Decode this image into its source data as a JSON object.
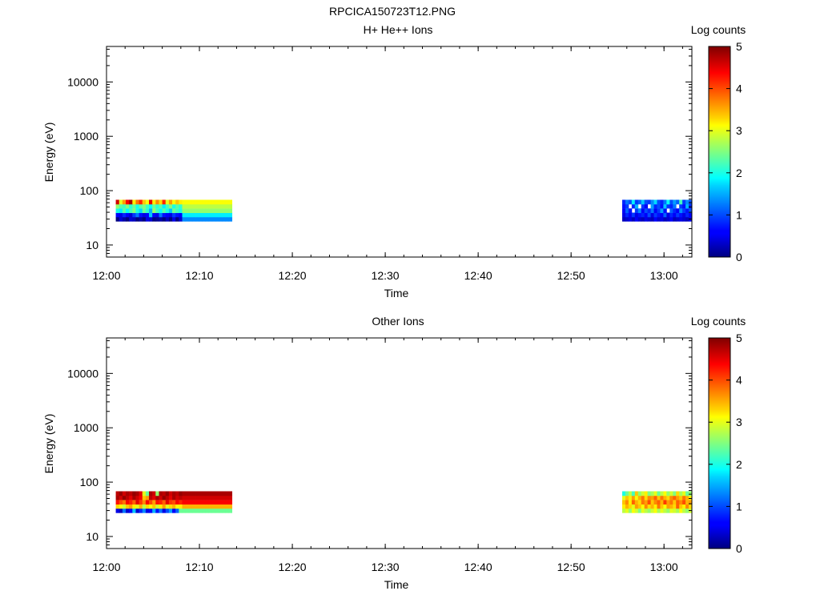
{
  "figure_title": "RPCICA150723T12.PNG",
  "chart_data": [
    {
      "type": "heatmap",
      "title": "H+ He++ Ions",
      "xlabel": "Time",
      "ylabel": "Energy (eV)",
      "y_scale": "log",
      "xlim": [
        "12:00",
        "13:03"
      ],
      "ylim": [
        6,
        45000
      ],
      "x_ticks": [
        "12:00",
        "12:10",
        "12:20",
        "12:30",
        "12:40",
        "12:50",
        "13:00"
      ],
      "y_ticks": [
        "10",
        "100",
        "1000",
        "10000"
      ],
      "colorbar": {
        "label": "Log counts",
        "range": [
          0,
          5
        ],
        "ticks": [
          "0",
          "1",
          "2",
          "3",
          "4",
          "5"
        ],
        "colormap": "jet"
      },
      "energy_bins": [
        30,
        36,
        43,
        52,
        62
      ],
      "segments": [
        {
          "t_start": "12:01",
          "t_end": "12:13.5",
          "rows": [
            [
              0.0,
              0.4,
              0.2,
              0.0,
              0.4,
              0.3,
              0.0,
              0.2,
              0.0,
              0.5,
              0.4,
              0.0,
              0.1,
              0.2,
              0.0,
              0.3,
              0.0,
              0.5,
              0.0,
              0.4,
              1.3,
              1.3,
              1.3,
              1.3,
              1.3,
              1.3,
              1.3,
              1.3,
              1.3,
              1.3,
              1.3,
              1.3,
              1.3,
              1.3,
              1.3
            ],
            [
              0.6,
              0.5,
              0.8,
              0.6,
              0.4,
              0.9,
              1.2,
              0.7,
              0.5,
              0.6,
              1.6,
              0.6,
              0.5,
              1.2,
              0.7,
              0.6,
              0.5,
              0.9,
              0.7,
              0.6,
              1.8,
              1.8,
              1.8,
              1.8,
              1.8,
              1.8,
              1.8,
              1.8,
              1.8,
              1.8,
              1.8,
              1.8,
              1.8,
              1.8,
              1.8
            ],
            [
              2.0,
              1.8,
              2.3,
              1.9,
              2.2,
              2.5,
              2.0,
              1.7,
              2.4,
              2.1,
              1.5,
              2.6,
              2.2,
              1.9,
              2.3,
              2.0,
              1.6,
              2.4,
              2.2,
              2.0,
              2.6,
              2.6,
              2.6,
              2.6,
              2.6,
              2.6,
              2.6,
              2.6,
              2.6,
              2.6,
              2.6,
              2.6,
              2.6,
              2.6,
              2.6
            ],
            [
              2.6,
              2.3,
              2.2,
              2.5,
              2.1,
              2.4,
              2.0,
              2.3,
              2.5,
              2.2,
              1.9,
              2.4,
              2.1,
              2.3,
              1.8,
              2.2,
              2.5,
              2.0,
              2.3,
              2.1,
              2.8,
              2.8,
              2.8,
              2.8,
              2.8,
              2.8,
              2.8,
              2.8,
              2.8,
              2.8,
              2.8,
              2.8,
              2.8,
              2.8,
              2.8
            ],
            [
              4.6,
              3.0,
              3.6,
              4.4,
              4.8,
              3.2,
              3.8,
              4.2,
              3.4,
              3.1,
              4.5,
              3.2,
              3.7,
              3.3,
              4.2,
              3.0,
              3.6,
              3.1,
              3.4,
              3.2,
              3.1,
              3.1,
              3.1,
              3.1,
              3.1,
              3.1,
              3.1,
              3.1,
              3.1,
              3.1,
              3.1,
              3.1,
              3.1,
              3.1,
              3.1
            ]
          ]
        },
        {
          "t_start": "12:55.5",
          "t_end": "13:03",
          "rows": [
            [
              0.3,
              0.4,
              0.5,
              0.3,
              0.6,
              0.4,
              0.3,
              0.5,
              0.4,
              0.3,
              0.6,
              0.4,
              0.5,
              0.3,
              0.4,
              0.6,
              0.3,
              0.4,
              0.5,
              0.4,
              0.3,
              0.5
            ],
            [
              0.5,
              0.8,
              0.6,
              0.9,
              0.5,
              0.7,
              0.8,
              0.6,
              1.0,
              0.5,
              0.9,
              0.7,
              0.6,
              1.1,
              0.5,
              0.8,
              0.6,
              0.9,
              0.7,
              0.5,
              0.8,
              0.6
            ],
            [
              0.6,
              1.1,
              0.7,
              null,
              0.9,
              1.3,
              0.6,
              1.0,
              0.8,
              1.2,
              0.6,
              0.9,
              1.4,
              0.7,
              null,
              1.1,
              0.8,
              0.6,
              1.3,
              0.9,
              0.7,
              1.0
            ],
            [
              0.7,
              0.9,
              null,
              0.8,
              1.5,
              null,
              0.9,
              0.6,
              null,
              1.4,
              0.8,
              1.0,
              0.7,
              1.6,
              0.9,
              0.8,
              1.2,
              null,
              0.9,
              0.7,
              1.5,
              0.8
            ],
            [
              0.8,
              1.2,
              1.0,
              1.8,
              0.9,
              1.1,
              1.6,
              1.0,
              0.9,
              1.3,
              1.7,
              1.0,
              0.8,
              1.2,
              1.9,
              1.0,
              1.4,
              1.1,
              2.2,
              0.9,
              1.3,
              1.0
            ]
          ]
        }
      ]
    },
    {
      "type": "heatmap",
      "title": "Other Ions",
      "xlabel": "Time",
      "ylabel": "Energy (eV)",
      "y_scale": "log",
      "xlim": [
        "12:00",
        "13:03"
      ],
      "ylim": [
        6,
        45000
      ],
      "x_ticks": [
        "12:00",
        "12:10",
        "12:20",
        "12:30",
        "12:40",
        "12:50",
        "13:00"
      ],
      "y_ticks": [
        "10",
        "100",
        "1000",
        "10000"
      ],
      "colorbar": {
        "label": "Log counts",
        "range": [
          0,
          5
        ],
        "ticks": [
          "0",
          "1",
          "2",
          "3",
          "4",
          "5"
        ],
        "colormap": "jet"
      },
      "energy_bins": [
        30,
        36,
        43,
        52,
        62
      ],
      "segments": [
        {
          "t_start": "12:01",
          "t_end": "12:13.5",
          "rows": [
            [
              0.5,
              0.3,
              1.2,
              0.4,
              0.6,
              1.6,
              0.4,
              0.8,
              1.3,
              0.5,
              0.6,
              1.5,
              0.7,
              1.2,
              0.5,
              1.0,
              1.4,
              0.6,
              1.1,
              2.4,
              2.4,
              2.4,
              2.4,
              2.4,
              2.4,
              2.4,
              2.4,
              2.4,
              2.4,
              2.4,
              2.4,
              2.4,
              2.4,
              2.4,
              2.4
            ],
            [
              3.3,
              3.1,
              2.9,
              3.4,
              3.6,
              3.2,
              3.0,
              3.5,
              2.8,
              3.3,
              3.1,
              3.4,
              2.9,
              3.2,
              3.6,
              3.0,
              3.3,
              3.5,
              3.1,
              3.2,
              3.5,
              3.5,
              3.5,
              3.5,
              3.5,
              3.5,
              3.5,
              3.5,
              3.5,
              3.5,
              3.5,
              3.5,
              3.5,
              3.5,
              3.5
            ],
            [
              4.3,
              4.0,
              3.8,
              4.4,
              4.2,
              3.9,
              4.5,
              4.1,
              3.7,
              4.4,
              4.0,
              3.6,
              4.3,
              4.2,
              3.9,
              4.5,
              4.1,
              4.0,
              4.4,
              4.2,
              4.4,
              4.4,
              4.4,
              4.4,
              4.4,
              4.4,
              4.4,
              4.4,
              4.4,
              4.4,
              4.4,
              4.4,
              4.4,
              4.4,
              4.4
            ],
            [
              4.8,
              4.6,
              4.9,
              4.7,
              4.5,
              4.8,
              4.6,
              4.4,
              3.4,
              3.6,
              4.7,
              4.5,
              4.8,
              4.6,
              4.9,
              4.7,
              4.5,
              4.8,
              4.6,
              4.7,
              4.6,
              4.6,
              4.6,
              4.6,
              4.6,
              4.6,
              4.6,
              4.6,
              4.6,
              4.6,
              4.6,
              4.6,
              4.6,
              4.6,
              4.6
            ],
            [
              4.7,
              4.9,
              4.6,
              4.8,
              4.7,
              4.9,
              4.8,
              4.5,
              3.0,
              2.4,
              4.8,
              4.6,
              2.6,
              4.8,
              4.7,
              4.9,
              4.6,
              4.8,
              4.7,
              4.9,
              4.8,
              4.8,
              4.8,
              4.8,
              4.8,
              4.8,
              4.8,
              4.8,
              4.8,
              4.8,
              4.8,
              4.8,
              4.8,
              4.8,
              4.8
            ]
          ]
        },
        {
          "t_start": "12:55.5",
          "t_end": "13:03",
          "rows": [
            [
              2.8,
              3.0,
              2.6,
              3.1,
              2.9,
              2.5,
              3.0,
              2.8,
              2.6,
              2.9,
              3.1,
              2.7,
              3.0,
              2.8,
              2.6,
              3.0,
              2.9,
              2.7,
              3.1,
              2.8,
              2.6,
              2.9
            ],
            [
              3.2,
              3.5,
              3.3,
              3.0,
              3.6,
              3.4,
              3.1,
              3.7,
              3.3,
              3.5,
              3.2,
              3.8,
              3.4,
              3.1,
              3.6,
              3.5,
              3.3,
              3.9,
              3.4,
              3.2,
              3.7,
              3.3
            ],
            [
              3.4,
              3.7,
              3.2,
              3.9,
              3.5,
              3.3,
              3.8,
              3.6,
              4.0,
              3.4,
              3.7,
              3.9,
              3.5,
              4.1,
              3.6,
              3.8,
              3.4,
              3.9,
              3.7,
              4.0,
              3.5,
              3.6
            ],
            [
              3.0,
              3.4,
              3.2,
              3.6,
              3.1,
              3.5,
              3.8,
              3.3,
              3.7,
              3.6,
              3.9,
              3.4,
              3.8,
              3.5,
              3.3,
              3.7,
              3.9,
              3.6,
              3.4,
              3.8,
              3.5,
              3.2
            ],
            [
              2.0,
              2.4,
              2.8,
              2.2,
              3.4,
              2.6,
              2.9,
              3.2,
              2.5,
              2.7,
              3.0,
              2.4,
              2.8,
              3.1,
              2.6,
              2.9,
              2.5,
              3.3,
              2.7,
              3.0,
              2.4,
              2.6
            ]
          ]
        }
      ]
    }
  ]
}
